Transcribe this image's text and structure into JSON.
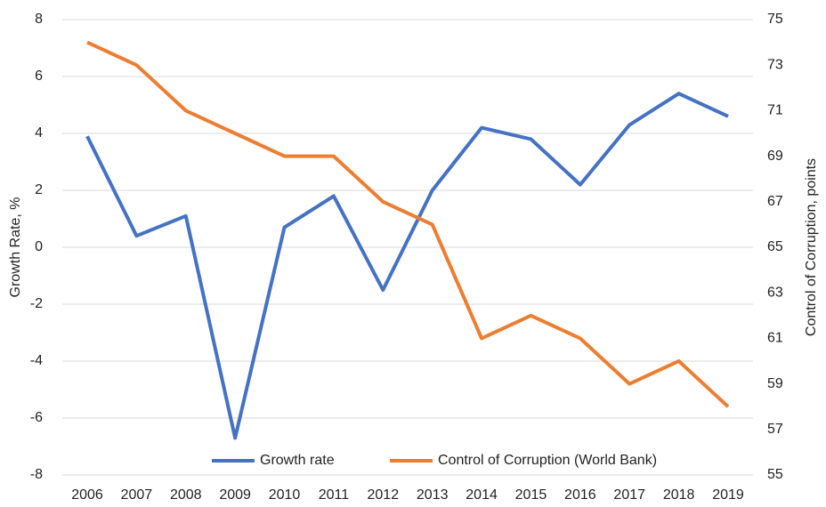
{
  "chart_data": {
    "type": "line",
    "y_label": "Growth Rate, %",
    "y2_label": "Control of Corruption, points",
    "categories": [
      "2006",
      "2007",
      "2008",
      "2009",
      "2010",
      "2011",
      "2012",
      "2013",
      "2014",
      "2015",
      "2016",
      "2017",
      "2018",
      "2019"
    ],
    "series": [
      {
        "name": "Growth rate",
        "color": "#4472c4",
        "values": [
          3.9,
          0.4,
          1.1,
          -6.7,
          0.7,
          1.8,
          -1.5,
          2.0,
          4.2,
          3.8,
          2.2,
          4.3,
          5.4,
          4.6
        ]
      },
      {
        "name": "Control of Corruption (World Bank)",
        "color": "#ed7d31",
        "axis": "y2",
        "values": [
          74,
          73,
          71,
          70,
          69,
          69,
          67,
          66,
          61,
          62,
          61,
          59,
          60,
          58
        ]
      }
    ],
    "ylim": [
      -8,
      8
    ],
    "yticks": [
      -8,
      -6,
      -4,
      -2,
      0,
      2,
      4,
      6,
      8
    ],
    "y2lim": [
      55,
      75
    ],
    "y2ticks": [
      55,
      57,
      59,
      61,
      63,
      65,
      67,
      69,
      71,
      73,
      75
    ],
    "grid": true,
    "legend": "bottom"
  }
}
